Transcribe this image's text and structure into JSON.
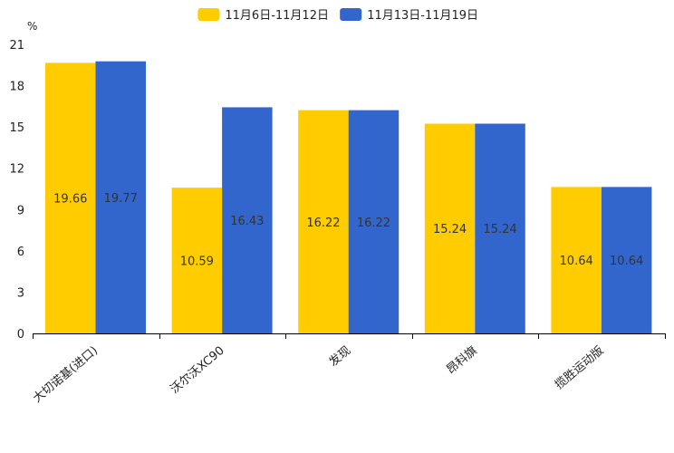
{
  "chart_data": {
    "type": "bar",
    "title": "",
    "xlabel": "",
    "ylabel": "%",
    "ylim": [
      0,
      21
    ],
    "yticks": [
      0,
      3,
      6,
      9,
      12,
      15,
      18,
      21
    ],
    "grid": false,
    "legend_position": "top-center",
    "categories": [
      "大切诺基(进口)",
      "沃尔沃XC90",
      "发现",
      "昂科旗",
      "揽胜运动版"
    ],
    "series": [
      {
        "name": "11月6日-11月12日",
        "color": "#FFCC00",
        "values": [
          19.66,
          10.59,
          16.22,
          15.24,
          10.64
        ]
      },
      {
        "name": "11月13日-11月19日",
        "color": "#3366CC",
        "values": [
          19.77,
          16.43,
          16.22,
          15.24,
          10.64
        ]
      }
    ]
  }
}
